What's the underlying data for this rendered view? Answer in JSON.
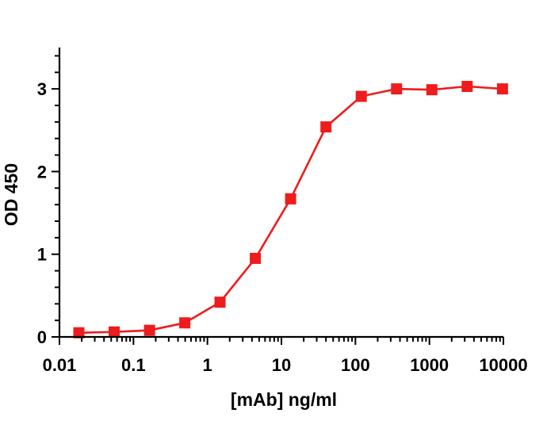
{
  "chart_data": {
    "type": "line",
    "title": "",
    "xlabel": "[mAb] ng/ml",
    "ylabel": "OD 450",
    "x_scale": "log",
    "xlim": [
      0.01,
      10000
    ],
    "ylim": [
      0,
      3.5
    ],
    "x_ticks": [
      "0.01",
      "0.1",
      "1",
      "10",
      "100",
      "1000",
      "10000"
    ],
    "y_ticks": [
      "0",
      "1",
      "2",
      "3"
    ],
    "grid": false,
    "legend": "none",
    "series": [
      {
        "color": "#ee1c1c",
        "marker": "square",
        "x": [
          0.0183,
          0.0549,
          0.165,
          0.494,
          1.48,
          4.44,
          13.3,
          40.0,
          120,
          360,
          1080,
          3240,
          9720
        ],
        "y": [
          0.05,
          0.06,
          0.08,
          0.17,
          0.42,
          0.95,
          1.67,
          2.54,
          2.91,
          3.0,
          2.99,
          3.03,
          3.0
        ]
      }
    ]
  }
}
